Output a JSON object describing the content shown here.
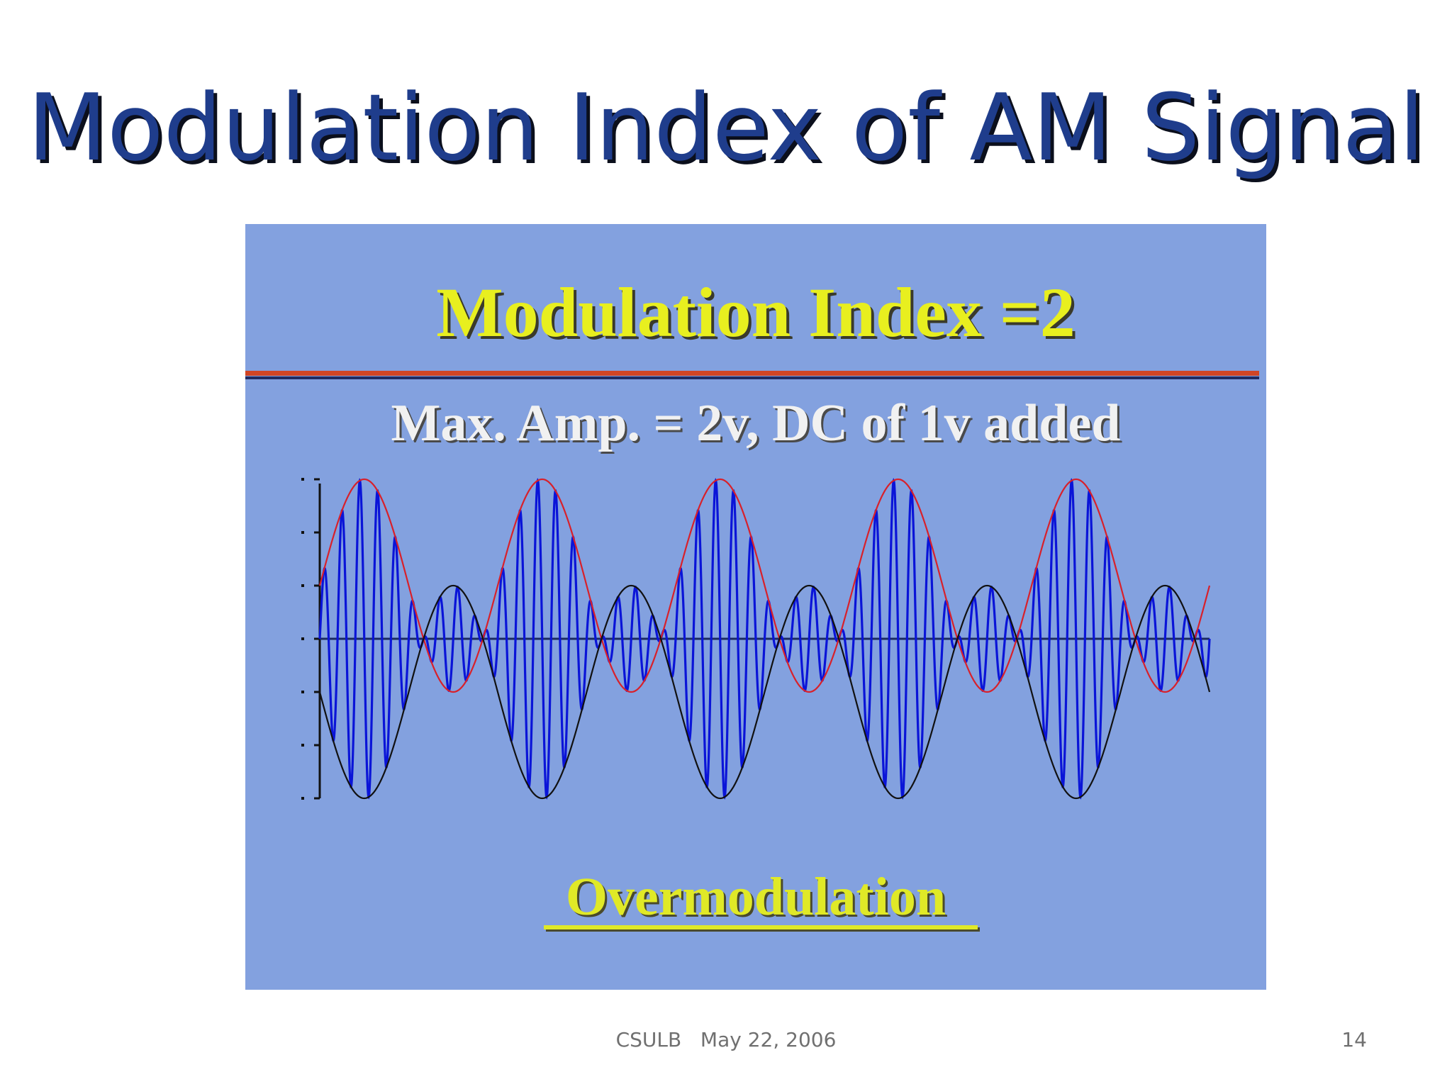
{
  "slide": {
    "title": "Modulation Index of AM Signal",
    "footer_text": "CSULB   May 22, 2006",
    "page_number": "14"
  },
  "figure": {
    "title": "Modulation Index =2",
    "subtitle": "Max. Amp. = 2v, DC of 1v added",
    "caption": "Overmodulation",
    "colors": {
      "background": "#83a1df",
      "title": "#e8ef1f",
      "caption": "#e0e927",
      "rule_red": "#d04525",
      "rule_dark": "#202b62",
      "carrier": "#0a14d8",
      "upper_envelope": "#d8202a",
      "lower_envelope": "#111111"
    }
  },
  "chart_data": {
    "type": "line",
    "title": "",
    "xlabel": "",
    "ylabel": "",
    "ylim": [
      -3,
      3
    ],
    "x_range": [
      0,
      10
    ],
    "cycles": 5,
    "carrier_cycles_per_envelope": 10,
    "series": [
      {
        "key": "carrier",
        "function": "(1 + 2*sin(2*pi*0.5*t)) * sin(2*pi*5*t)",
        "peak": 3,
        "trough": -3
      },
      {
        "key": "upper_envelope",
        "function": "1 + 2*sin(2*pi*0.5*t)",
        "max": 3,
        "min": -1
      },
      {
        "key": "lower_envelope",
        "function": "-(1 + 2*sin(2*pi*0.5*t))",
        "max": 1,
        "min": -3
      }
    ],
    "grid": false,
    "legend": "none"
  }
}
